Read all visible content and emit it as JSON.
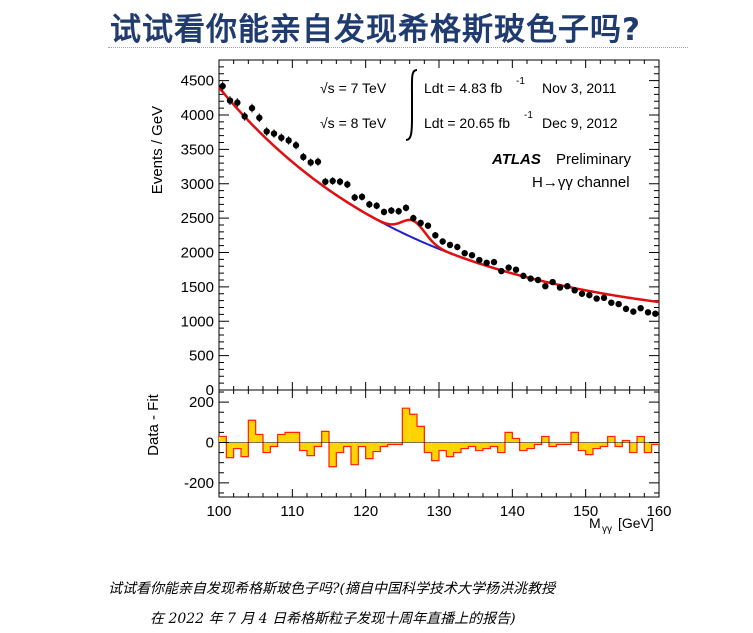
{
  "slide": {
    "title": "试试看你能亲自发现希格斯玻色子吗?",
    "caption_line1": "试试看你能亲自发现希格斯玻色子吗?(摘自中国科学技术大学杨洪洮教授",
    "caption_line2": "在 2022 年 7 月 4 日希格斯粒子发现十周年直播上的报告)"
  },
  "chart_data": {
    "type": "scatter",
    "annotations": {
      "sqrt_s_7": "√s = 7 TeV",
      "sqrt_s_8": "√s = 8 TeV",
      "lumi_7": "Ldt = 4.83 fb",
      "lumi_8": "Ldt = 20.65 fb",
      "lumi_exp": "-1",
      "date_7": "Nov  3, 2011",
      "date_8": "Dec  9, 2012",
      "experiment": "ATLAS",
      "status": "Preliminary",
      "channel": "H→γγ channel"
    },
    "xlabel": "M",
    "xlabel_sub": "γγ",
    "xlabel_unit": "[GeV]",
    "xlim": [
      100,
      160
    ],
    "xticks": [
      "100",
      "110",
      "120",
      "130",
      "140",
      "150",
      "160"
    ],
    "top_panel": {
      "ylabel": "Events / GeV",
      "ylim": [
        0,
        4800
      ],
      "yticks": [
        "0",
        "500",
        "1000",
        "1500",
        "2000",
        "2500",
        "3000",
        "3500",
        "4000",
        "4500"
      ],
      "series": [
        {
          "kind": "data",
          "x": [
            100.5,
            101.5,
            102.5,
            103.5,
            104.5,
            105.5,
            106.5,
            107.5,
            108.5,
            109.5,
            110.5,
            111.5,
            112.5,
            113.5,
            114.5,
            115.5,
            116.5,
            117.5,
            118.5,
            119.5,
            120.5,
            121.5,
            122.5,
            123.5,
            124.5,
            125.5,
            126.5,
            127.5,
            128.5,
            129.5,
            130.5,
            131.5,
            132.5,
            133.5,
            134.5,
            135.5,
            136.5,
            137.5,
            138.5,
            139.5,
            140.5,
            141.5,
            142.5,
            143.5,
            144.5,
            145.5,
            146.5,
            147.5,
            148.5,
            149.5,
            150.5,
            151.5,
            152.5,
            153.5,
            154.5,
            155.5,
            156.5,
            157.5,
            158.5,
            159.5
          ],
          "y": [
            4420,
            4210,
            4180,
            3980,
            4100,
            3960,
            3760,
            3730,
            3670,
            3630,
            3560,
            3390,
            3310,
            3320,
            3030,
            3040,
            3030,
            2990,
            2800,
            2810,
            2700,
            2680,
            2590,
            2610,
            2600,
            2650,
            2500,
            2430,
            2390,
            2250,
            2160,
            2110,
            2080,
            1990,
            1960,
            1890,
            1850,
            1860,
            1730,
            1780,
            1750,
            1660,
            1620,
            1600,
            1510,
            1570,
            1490,
            1510,
            1450,
            1400,
            1380,
            1330,
            1340,
            1270,
            1250,
            1180,
            1140,
            1190,
            1130,
            1110
          ]
        },
        {
          "kind": "background-fit",
          "color": "#1f1fd0"
        },
        {
          "kind": "signal-plus-background-fit",
          "color": "#e01010"
        }
      ]
    },
    "bottom_panel": {
      "ylabel": "Data - Fit",
      "ylim": [
        -270,
        260
      ],
      "yticks": [
        "-200",
        "0",
        "200"
      ],
      "fill_color": "#ffd400",
      "line_color": "#ff2000",
      "residuals": [
        30,
        -75,
        -30,
        -70,
        110,
        40,
        -50,
        -20,
        40,
        50,
        50,
        -40,
        -65,
        -20,
        55,
        -120,
        -50,
        -20,
        -110,
        -20,
        -80,
        -45,
        -20,
        -10,
        -10,
        170,
        140,
        80,
        -50,
        -90,
        -40,
        -70,
        -50,
        -30,
        -20,
        -40,
        -30,
        -20,
        -50,
        50,
        20,
        -40,
        -30,
        -10,
        30,
        -20,
        -10,
        -10,
        50,
        -40,
        -60,
        -30,
        -20,
        30,
        -20,
        10,
        -50,
        30,
        -50,
        -10
      ]
    }
  }
}
